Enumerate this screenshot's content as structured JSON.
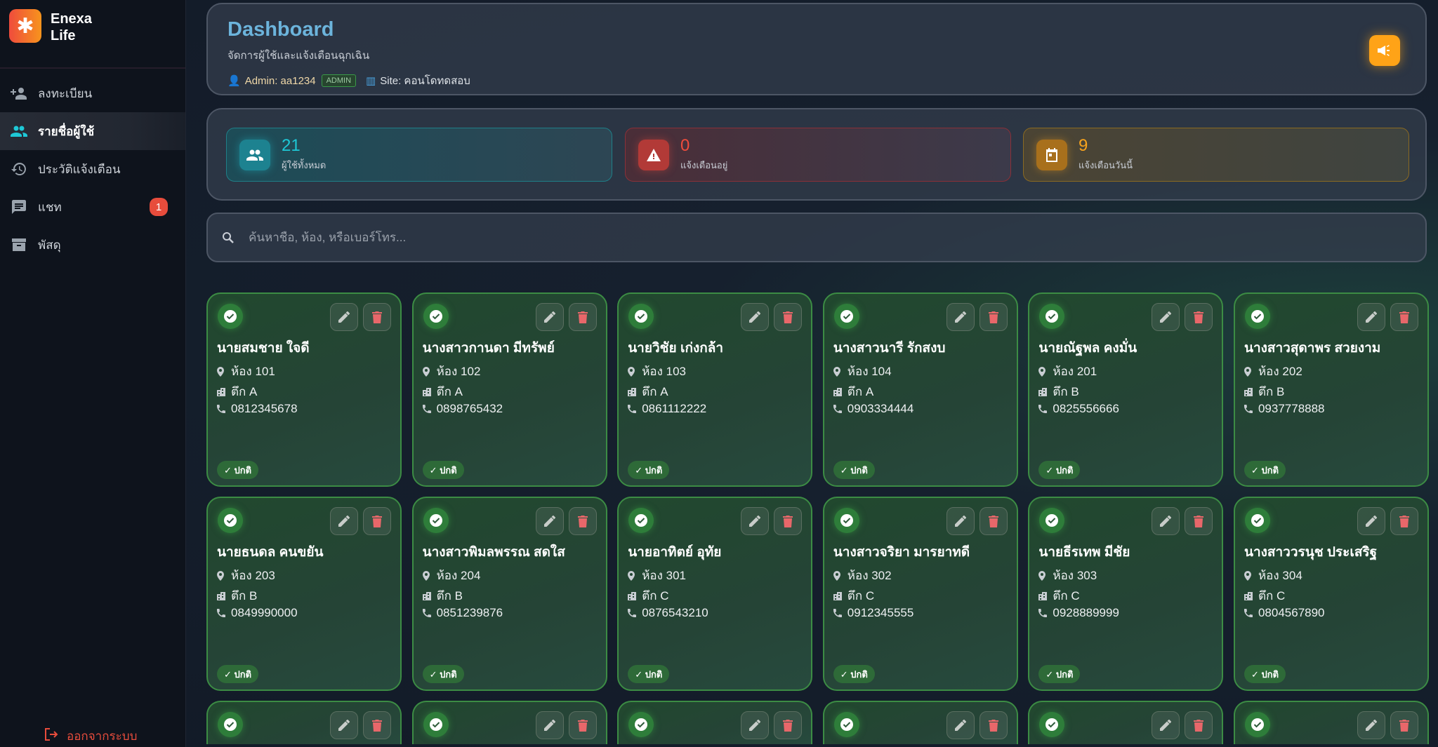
{
  "brand": {
    "name": "Enexa Life",
    "logo_icon": "asterisk",
    "logo_colors": [
      "#ef4c3c",
      "#f7941d"
    ]
  },
  "sidebar": {
    "items": [
      {
        "label": "ลงทะเบียน",
        "icon": "person-add-icon"
      },
      {
        "label": "รายชื่อผู้ใช้",
        "icon": "people-icon",
        "active": true
      },
      {
        "label": "ประวัติแจ้งเตือน",
        "icon": "history-icon"
      },
      {
        "label": "แชท",
        "icon": "chat-icon",
        "badge": "1"
      },
      {
        "label": "พัสดุ",
        "icon": "archive-icon"
      }
    ],
    "logout": "ออกจากระบบ"
  },
  "header": {
    "title": "Dashboard",
    "subtitle": "จัดการผู้ใช้และแจ้งเตือนฉุกเฉิน",
    "admin": "Admin: aa1234",
    "role_badge": "ADMIN",
    "site": "Site: คอนโดทดสอบ",
    "action_icon": "megaphone-icon"
  },
  "stats": [
    {
      "value": "21",
      "label": "ผู้ใช้ทั้งหมด",
      "color": "#1ec8d6"
    },
    {
      "value": "0",
      "label": "แจ้งเตือนอยู่",
      "color": "#ef4c3c"
    },
    {
      "value": "9",
      "label": "แจ้งเตือนวันนี้",
      "color": "#f7a31d"
    }
  ],
  "search": {
    "placeholder": "ค้นหาชื่อ, ห้อง, หรือเบอร์โทร..."
  },
  "users": [
    {
      "name": "นายสมชาย ใจดี",
      "room": "ห้อง 101",
      "building": "ตึก A",
      "phone": "0812345678",
      "status": "✓ ปกติ"
    },
    {
      "name": "นางสาวกานดา มีทรัพย์",
      "room": "ห้อง 102",
      "building": "ตึก A",
      "phone": "0898765432",
      "status": "✓ ปกติ"
    },
    {
      "name": "นายวิชัย เก่งกล้า",
      "room": "ห้อง 103",
      "building": "ตึก A",
      "phone": "0861112222",
      "status": "✓ ปกติ"
    },
    {
      "name": "นางสาวนารี รักสงบ",
      "room": "ห้อง 104",
      "building": "ตึก A",
      "phone": "0903334444",
      "status": "✓ ปกติ"
    },
    {
      "name": "นายณัฐพล คงมั่น",
      "room": "ห้อง 201",
      "building": "ตึก B",
      "phone": "0825556666",
      "status": "✓ ปกติ"
    },
    {
      "name": "นางสาวสุดาพร สวยงาม",
      "room": "ห้อง 202",
      "building": "ตึก B",
      "phone": "0937778888",
      "status": "✓ ปกติ"
    },
    {
      "name": "นายธนดล คนขยัน",
      "room": "ห้อง 203",
      "building": "ตึก B",
      "phone": "0849990000",
      "status": "✓ ปกติ"
    },
    {
      "name": "นางสาวพิมลพรรณ สดใส",
      "room": "ห้อง 204",
      "building": "ตึก B",
      "phone": "0851239876",
      "status": "✓ ปกติ"
    },
    {
      "name": "นายอาทิตย์ อุทัย",
      "room": "ห้อง 301",
      "building": "ตึก C",
      "phone": "0876543210",
      "status": "✓ ปกติ"
    },
    {
      "name": "นางสาวจริยา มารยาทดี",
      "room": "ห้อง 302",
      "building": "ตึก C",
      "phone": "0912345555",
      "status": "✓ ปกติ"
    },
    {
      "name": "นายธีรเทพ มีชัย",
      "room": "ห้อง 303",
      "building": "ตึก C",
      "phone": "0928889999",
      "status": "✓ ปกติ"
    },
    {
      "name": "นางสาววรนุช ประเสริฐ",
      "room": "ห้อง 304",
      "building": "ตึก C",
      "phone": "0804567890",
      "status": "✓ ปกติ"
    }
  ]
}
